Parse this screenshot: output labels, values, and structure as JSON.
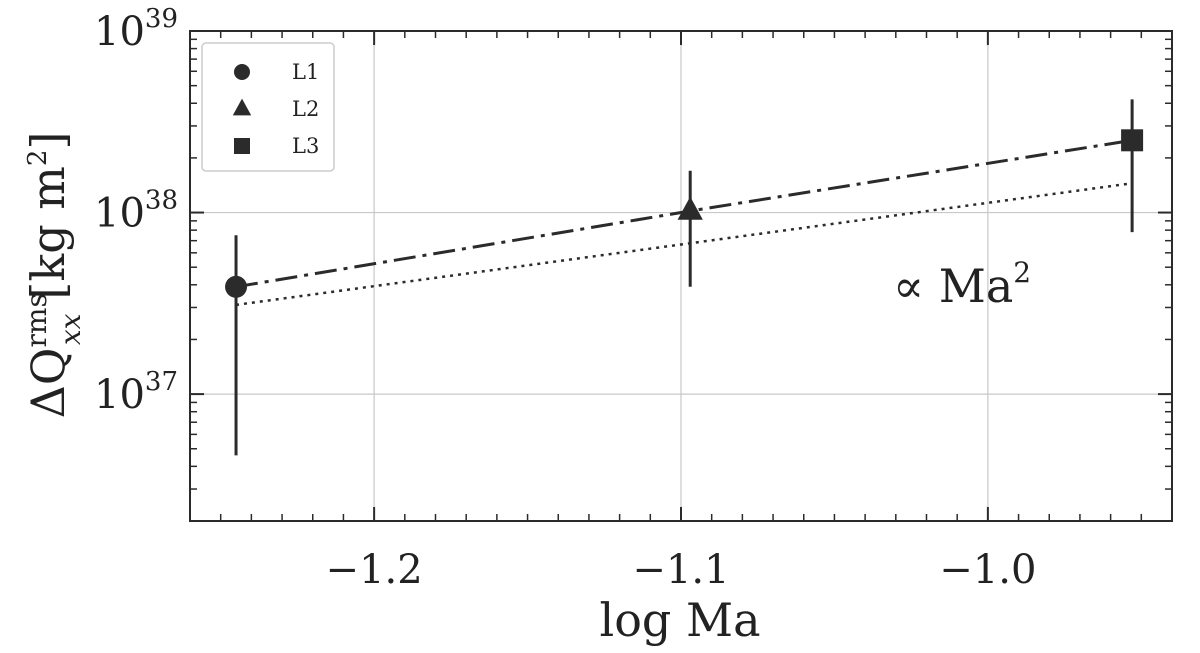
{
  "chart_data": {
    "type": "scatter",
    "xlabel": "log Ma",
    "ylabel": {
      "base": "ΔQ",
      "sup": "rms",
      "sub": "xx",
      "units": "[kg m",
      "units_sup": "2",
      "units_end": "]"
    },
    "x_scale": "linear",
    "y_scale": "log",
    "xlim": [
      -1.26,
      -0.94
    ],
    "ylim": [
      2e+36,
      1e+39
    ],
    "x_ticks": [
      -1.2,
      -1.1,
      -1.0
    ],
    "x_tick_labels": [
      "−1.2",
      "−1.1",
      "−1.0"
    ],
    "y_ticks": [
      {
        "value": 1e+37,
        "base": "10",
        "exp": "37"
      },
      {
        "value": 1e+38,
        "base": "10",
        "exp": "38"
      },
      {
        "value": 1e+39,
        "base": "10",
        "exp": "39"
      }
    ],
    "grid": true,
    "legend_placement": "top-left",
    "series": [
      {
        "name": "L1",
        "marker": "circle",
        "x": -1.245,
        "y": 3.9e+37,
        "err_low": 4.6e+36,
        "err_high": 7.5e+37
      },
      {
        "name": "L2",
        "marker": "triangle",
        "x": -1.097,
        "y": 1.02e+38,
        "err_low": 3.9e+37,
        "err_high": 1.7e+38
      },
      {
        "name": "L3",
        "marker": "square",
        "x": -0.953,
        "y": 2.5e+38,
        "err_low": 7.8e+37,
        "err_high": 4.2e+38
      }
    ],
    "lines": [
      {
        "style": "dashdot",
        "x": [
          -1.245,
          -1.097,
          -0.953
        ],
        "y": [
          3.9e+37,
          1.02e+38,
          2.5e+38
        ]
      },
      {
        "style": "dotted",
        "x": [
          -1.245,
          -0.953
        ],
        "y": [
          3.1e+37,
          1.45e+38
        ]
      }
    ],
    "annotation": {
      "text": "∝ Ma",
      "sup": "2"
    },
    "color": "#2b2b2b"
  }
}
